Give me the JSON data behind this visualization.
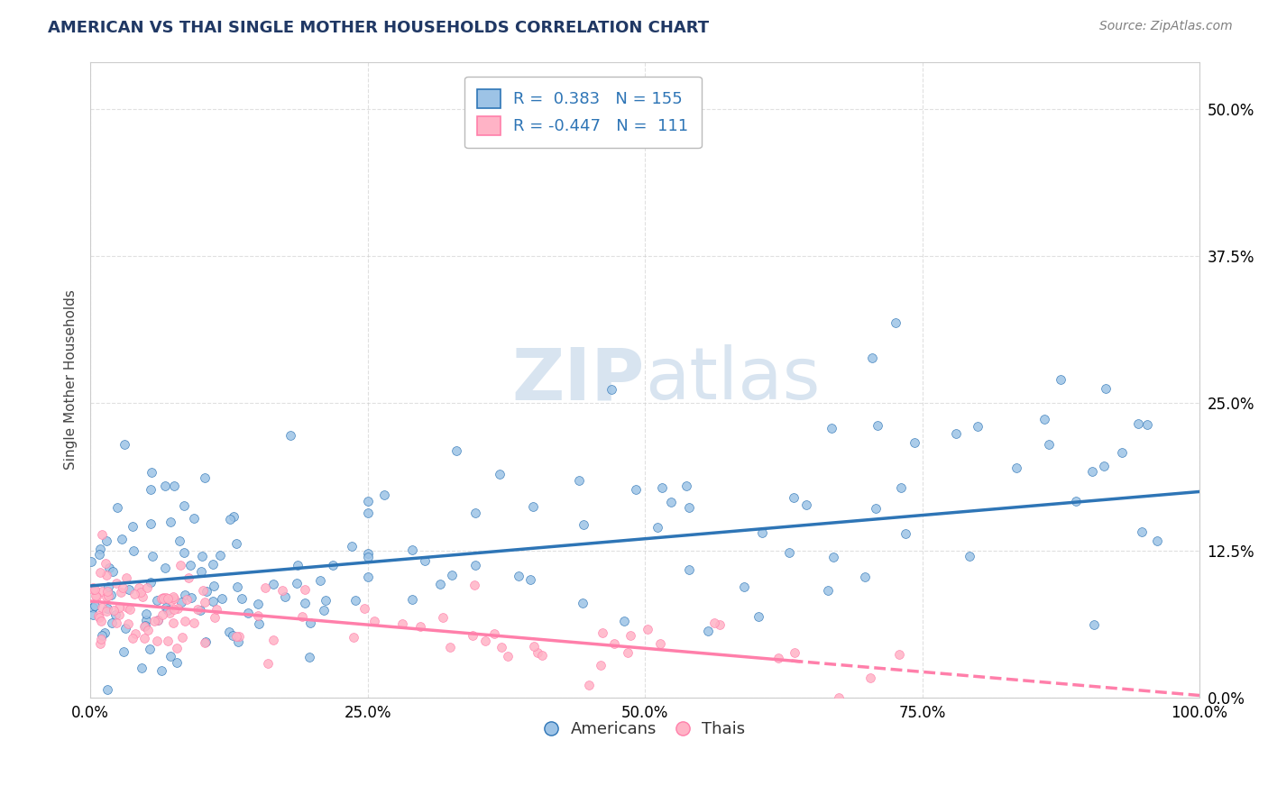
{
  "title": "AMERICAN VS THAI SINGLE MOTHER HOUSEHOLDS CORRELATION CHART",
  "source": "Source: ZipAtlas.com",
  "ylabel": "Single Mother Households",
  "xlim": [
    0.0,
    1.0
  ],
  "ylim": [
    0.0,
    0.54
  ],
  "yticks": [
    0.0,
    0.125,
    0.25,
    0.375,
    0.5
  ],
  "ytick_labels": [
    "0.0%",
    "12.5%",
    "25.0%",
    "37.5%",
    "50.0%"
  ],
  "xticks": [
    0.0,
    0.25,
    0.5,
    0.75,
    1.0
  ],
  "xtick_labels": [
    "0.0%",
    "25.0%",
    "50.0%",
    "75.0%",
    "100.0%"
  ],
  "american_R": 0.383,
  "american_N": 155,
  "thai_R": -0.447,
  "thai_N": 111,
  "american_color": "#9DC3E6",
  "thai_color": "#FFB3C6",
  "american_line_color": "#2E75B6",
  "thai_line_color": "#FF7FAA",
  "title_color": "#203864",
  "legend_text_color": "#2E75B6",
  "watermark_color": "#D8E4F0",
  "background_color": "#FFFFFF",
  "grid_color": "#CCCCCC",
  "am_line_x0": 0.0,
  "am_line_y0": 0.095,
  "am_line_x1": 1.0,
  "am_line_y1": 0.175,
  "th_line_x0": 0.0,
  "th_line_y0": 0.082,
  "th_line_x1": 1.0,
  "th_line_y1": 0.002,
  "th_line_dash_start": 0.63
}
